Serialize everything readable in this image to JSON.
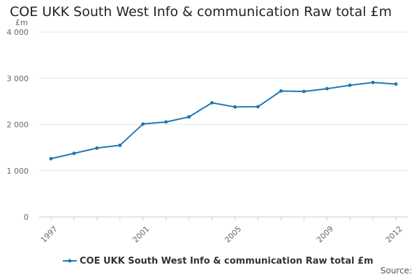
{
  "chart_data": {
    "type": "line",
    "title": "COE UKK South West Info & communication Raw total £m",
    "y_unit": "£m",
    "x": [
      1997,
      1998,
      1999,
      2000,
      2001,
      2002,
      2003,
      2004,
      2005,
      2006,
      2007,
      2008,
      2009,
      2010,
      2011,
      2012
    ],
    "x_tick_labels": [
      "1997",
      "2001",
      "2005",
      "2009",
      "2012"
    ],
    "x_tick_values": [
      1997,
      2001,
      2005,
      2009,
      2012
    ],
    "y_tick_values": [
      0,
      1000,
      2000,
      3000,
      4000
    ],
    "y_tick_labels": [
      "0",
      "1 000",
      "2 000",
      "3 000",
      "4 000"
    ],
    "ylim": [
      0,
      4000
    ],
    "grid": true,
    "legend_position": "bottom",
    "series": [
      {
        "name": "COE UKK South West Info & communication Raw total £m",
        "color": "#1f77b4",
        "values": [
          1260,
          1375,
          1490,
          1550,
          2010,
          2055,
          2165,
          2470,
          2380,
          2385,
          2725,
          2715,
          2775,
          2850,
          2910,
          2875
        ]
      }
    ]
  },
  "footer": {
    "source_label": "Source:"
  }
}
